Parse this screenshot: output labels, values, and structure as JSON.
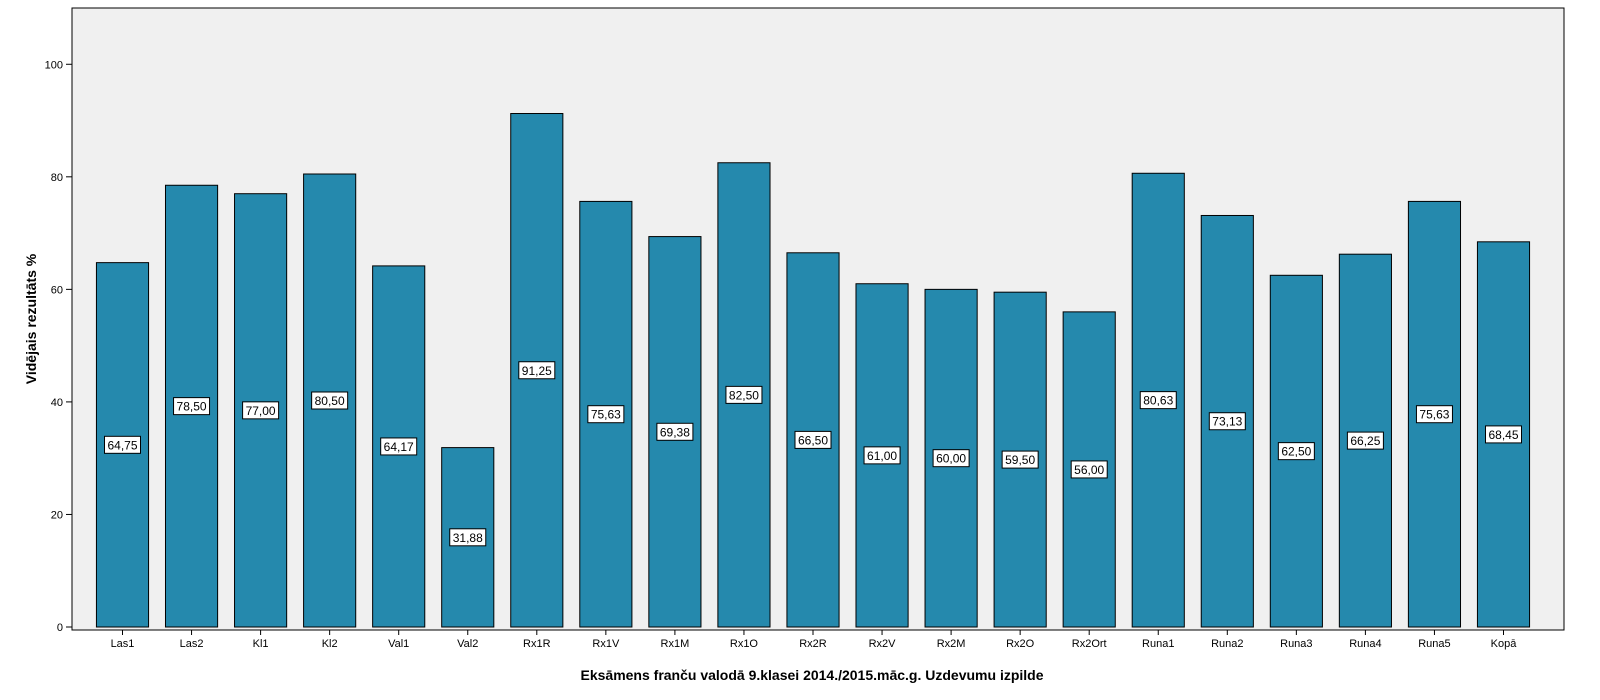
{
  "chart_data": {
    "type": "bar",
    "xlabel": "Eksāmens franču valodā 9.klasei 2014./2015.māc.g. Uzdevumu izpilde",
    "ylabel": "Vidējais rezultāts %",
    "ylim": [
      0,
      110
    ],
    "yticks": [
      "0",
      "20",
      "40",
      "60",
      "80",
      "100"
    ],
    "grid": false,
    "categories": [
      "Las1",
      "Las2",
      "Kl1",
      "Kl2",
      "Val1",
      "Val2",
      "Rx1R",
      "Rx1V",
      "Rx1M",
      "Rx1O",
      "Rx2R",
      "Rx2V",
      "Rx2M",
      "Rx2O",
      "Rx2Ort",
      "Runa1",
      "Runa2",
      "Runa3",
      "Runa4",
      "Runa5",
      "Kopā"
    ],
    "values": [
      64.75,
      78.5,
      77.0,
      80.5,
      64.17,
      31.88,
      91.25,
      75.63,
      69.38,
      82.5,
      66.5,
      61.0,
      60.0,
      59.5,
      56.0,
      80.63,
      73.13,
      62.5,
      66.25,
      75.63,
      68.45
    ],
    "value_labels": [
      "64,75",
      "78,50",
      "77,00",
      "80,50",
      "64,17",
      "31,88",
      "91,25",
      "75,63",
      "69,38",
      "82,50",
      "66,50",
      "61,00",
      "60,00",
      "59,50",
      "56,00",
      "80,63",
      "73,13",
      "62,50",
      "66,25",
      "75,63",
      "68,45"
    ],
    "colors": {
      "bar": "#2589ad",
      "bar_stroke": "#000000",
      "plot_background": "#f0f0f0",
      "label_background": "#ffffff"
    }
  }
}
